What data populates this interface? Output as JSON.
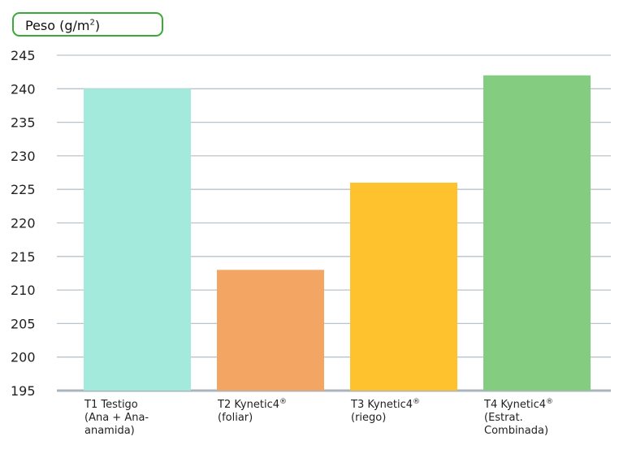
{
  "chart_data": {
    "type": "bar",
    "ylabel_main": "Peso (g/m",
    "ylabel_sup": "2",
    "ylabel_end": ")",
    "ylim": [
      195,
      245
    ],
    "ytick_step": 5,
    "yticks": [
      "195",
      "200",
      "205",
      "210",
      "215",
      "220",
      "225",
      "230",
      "235",
      "240",
      "245"
    ],
    "grid": true,
    "categories": [
      {
        "lines": [
          {
            "text": "T1 Testigo",
            "sup": ""
          },
          {
            "text": "(Ana + Ana-",
            "sup": ""
          },
          {
            "text": "anamida)",
            "sup": ""
          }
        ]
      },
      {
        "lines": [
          {
            "text": "T2 Kynetic4",
            "sup": "®"
          },
          {
            "text": "(foliar)",
            "sup": ""
          }
        ]
      },
      {
        "lines": [
          {
            "text": "T3 Kynetic4",
            "sup": "®"
          },
          {
            "text": "(riego)",
            "sup": ""
          }
        ]
      },
      {
        "lines": [
          {
            "text": "T4 Kynetic4",
            "sup": "®"
          },
          {
            "text": "(Estrat.",
            "sup": ""
          },
          {
            "text": "Combinada)",
            "sup": ""
          }
        ]
      }
    ],
    "values": [
      240,
      213,
      226,
      242
    ],
    "colors": [
      "#a4eadc",
      "#f3a564",
      "#fdc22e",
      "#84cc80"
    ],
    "grid_color": "#b8c3cc",
    "axis_color": "#aab4bd",
    "frame_color": "#3aa935"
  }
}
